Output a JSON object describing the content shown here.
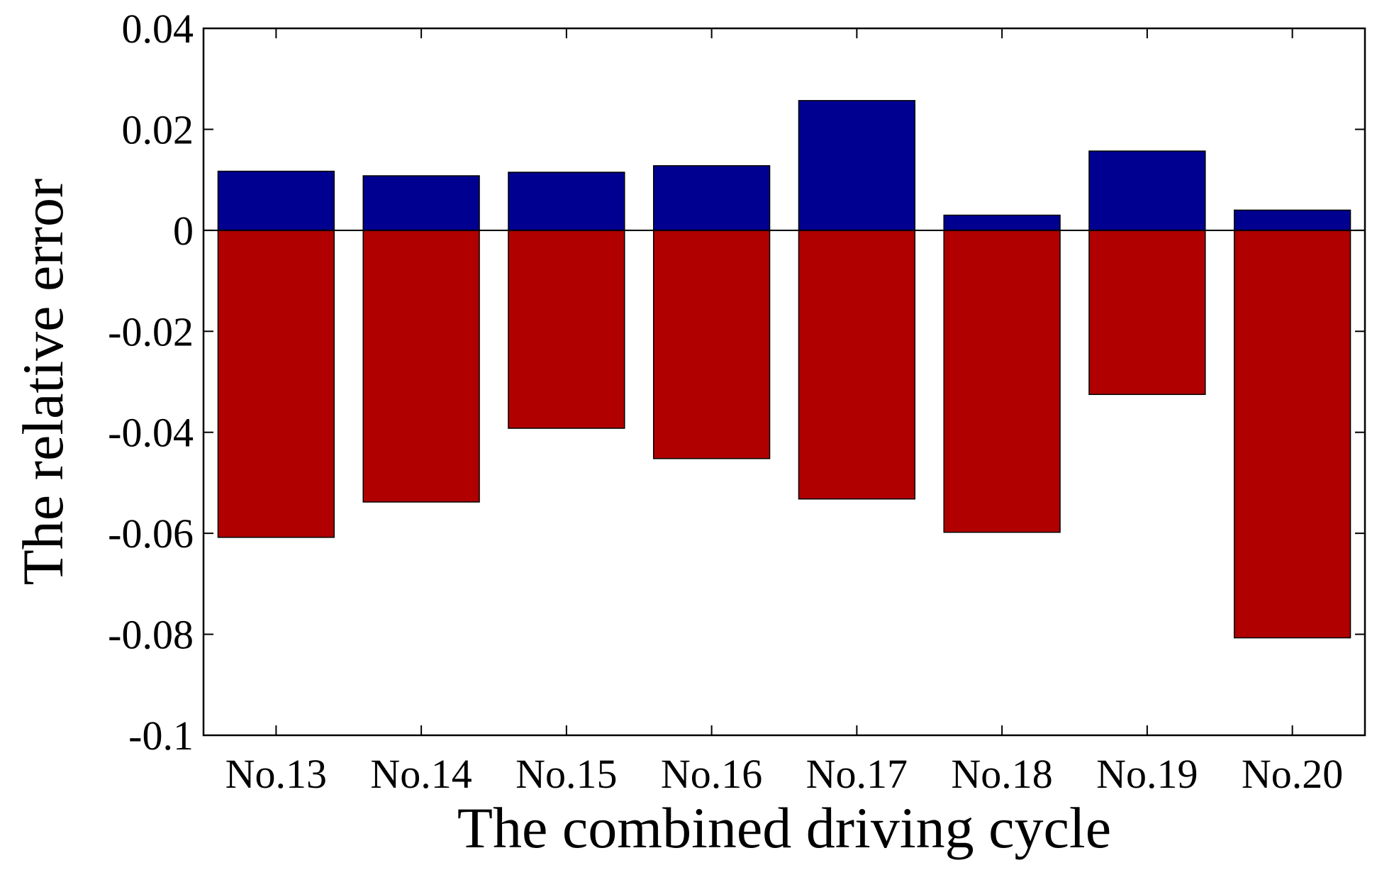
{
  "chart_data": {
    "type": "bar",
    "title": "",
    "xlabel": "The combined driving cycle",
    "ylabel": "The relative error",
    "categories": [
      "No.13",
      "No.14",
      "No.15",
      "No.16",
      "No.17",
      "No.18",
      "No.19",
      "No.20"
    ],
    "series": [
      {
        "name": "positive error",
        "color": "#000090",
        "values": [
          0.0117,
          0.0108,
          0.0115,
          0.0128,
          0.0257,
          0.003,
          0.0157,
          0.004
        ]
      },
      {
        "name": "negative error",
        "color": "#B00000",
        "values": [
          -0.0608,
          -0.0538,
          -0.0392,
          -0.0452,
          -0.0532,
          -0.0598,
          -0.0325,
          -0.0807
        ]
      }
    ],
    "ylim": [
      -0.1,
      0.04
    ],
    "yticks": [
      0.04,
      0.02,
      0,
      -0.02,
      -0.04,
      -0.06,
      -0.08,
      -0.1
    ],
    "ytick_labels": [
      "0.04",
      "0.02",
      "0",
      "-0.02",
      "-0.04",
      "-0.06",
      "-0.08",
      "-0.1"
    ],
    "grid": false,
    "stacked": true
  }
}
